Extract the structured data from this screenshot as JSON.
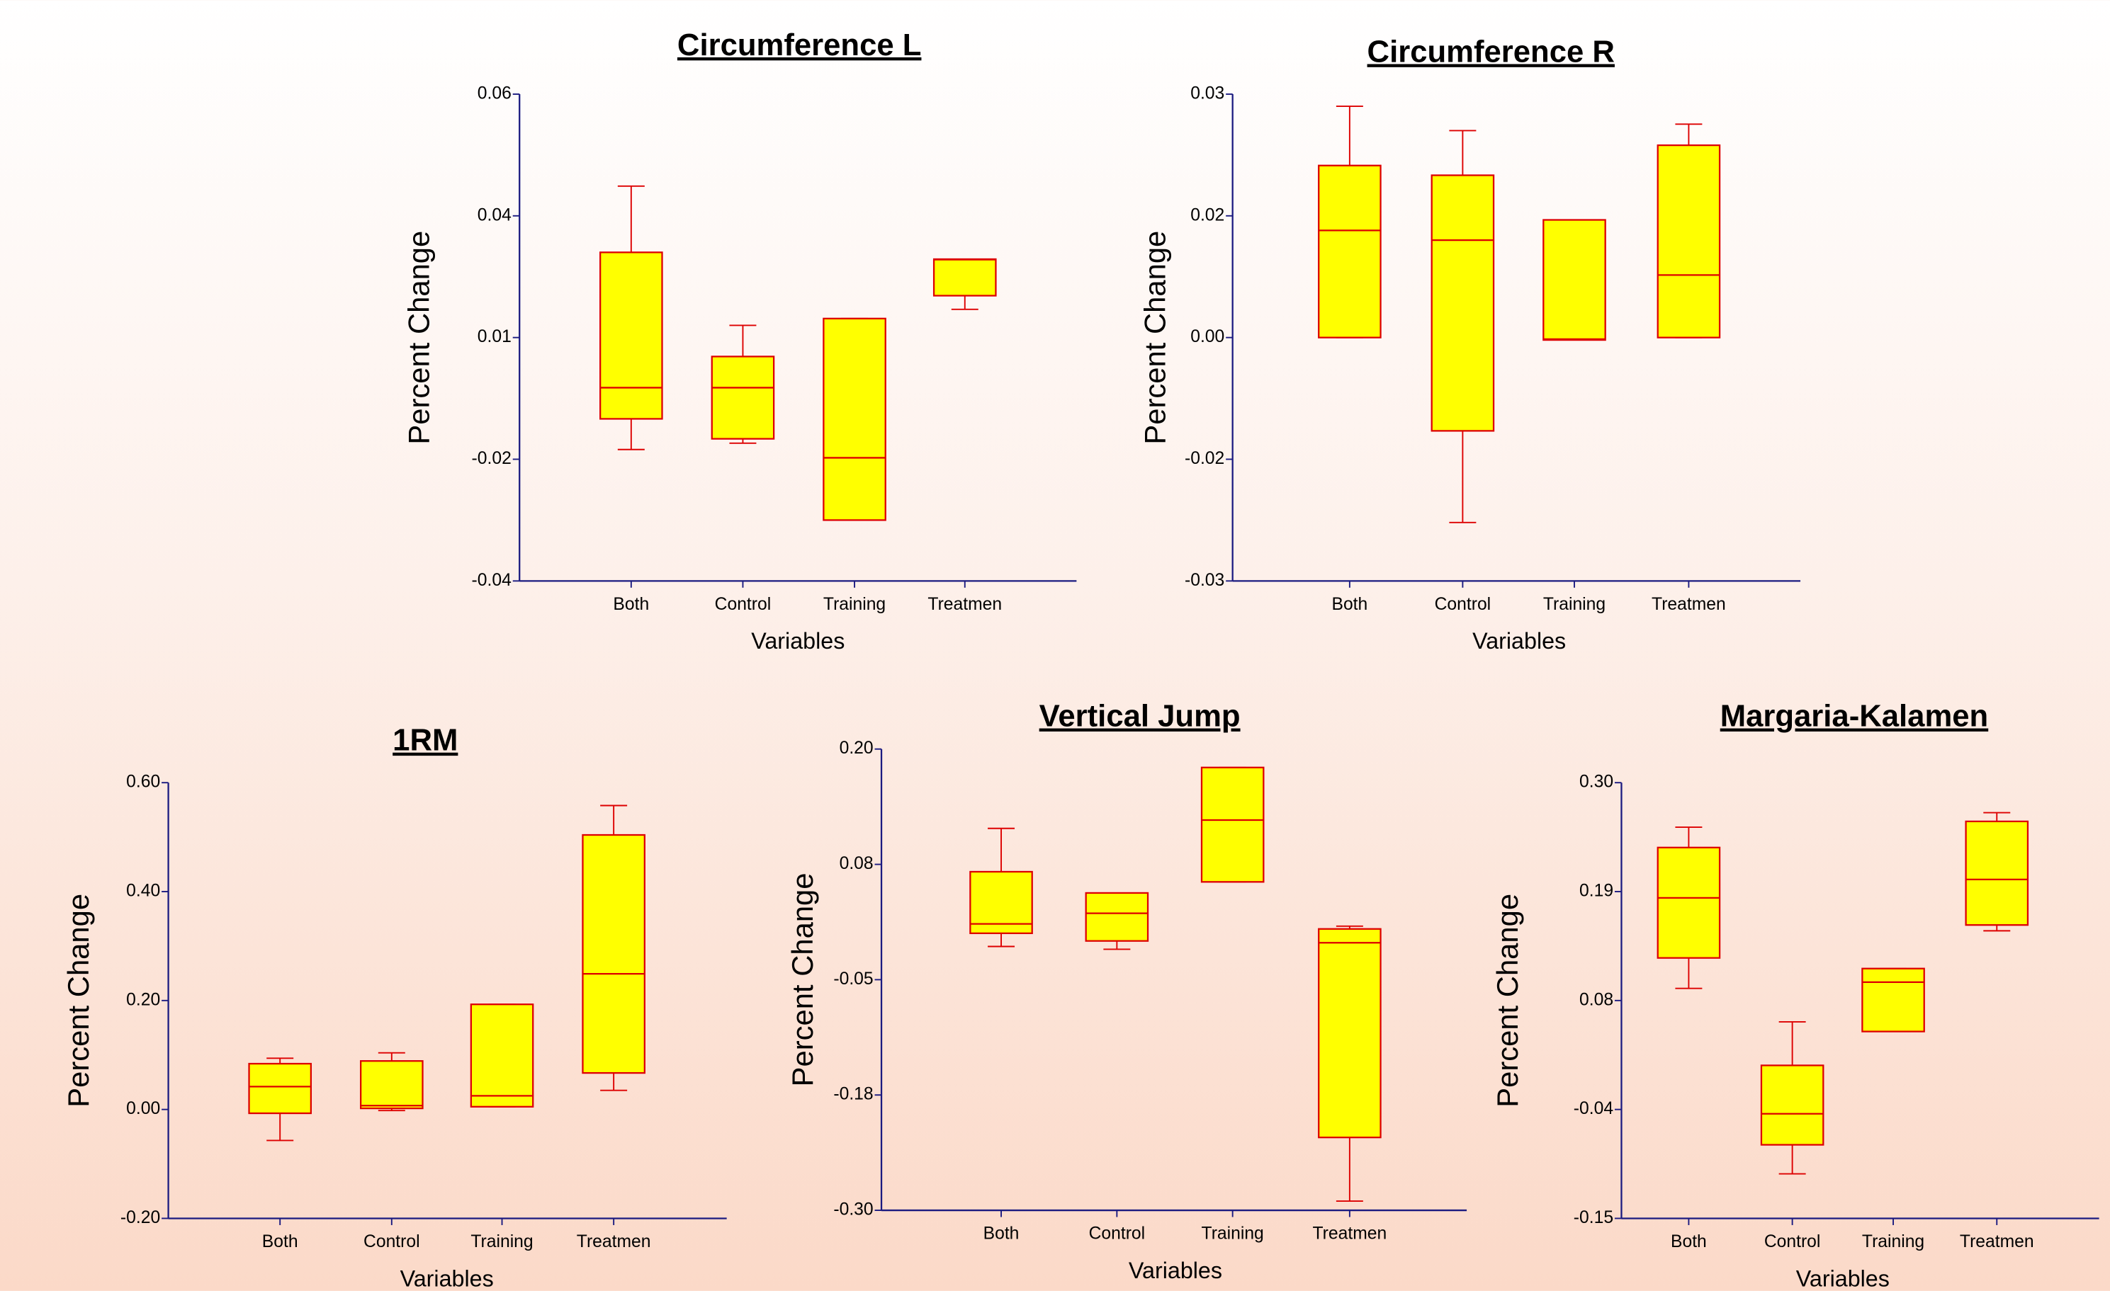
{
  "chart_data": [
    {
      "type": "box",
      "title": "Circumference L",
      "y_label": "Percent Change",
      "x_label": "Variables",
      "categories": [
        "Both",
        "Control",
        "Training",
        "Treatmen"
      ],
      "color": "#ffff00",
      "line_color": "#dd0000",
      "ylim": [
        -0.04,
        0.06
      ],
      "yticks": [
        0.06,
        {
          "value": 0.035,
          "label": "0.04"
        },
        0.01,
        {
          "value": -0.015,
          "label": "-0.02"
        },
        -0.04
      ],
      "boxes": [
        {
          "min": -0.013,
          "q1": -0.0067,
          "median": -0.0003,
          "q3": 0.0275,
          "max": 0.0411
        },
        {
          "min": -0.0117,
          "q1": -0.0108,
          "median": -0.0003,
          "q3": 0.0061,
          "max": 0.0125
        },
        {
          "min": -0.0275,
          "q1": -0.0275,
          "median": -0.0147,
          "q3": 0.0139,
          "max": 0.0139
        },
        {
          "min": 0.0158,
          "q1": 0.0186,
          "median": 0.026,
          "q3": 0.0261,
          "max": 0.0261
        }
      ]
    },
    {
      "type": "box",
      "title": "Circumference R",
      "y_label": "Percent Change",
      "x_label": "Variables",
      "categories": [
        "Both",
        "Control",
        "Training",
        "Treatmen"
      ],
      "color": "#ffff00",
      "line_color": "#dd0000",
      "ylim": [
        -0.03,
        0.03
      ],
      "yticks": [
        0.03,
        {
          "value": 0.015,
          "label": "0.02"
        },
        {
          "value": 0,
          "label": "0.00"
        },
        {
          "value": -0.015,
          "label": "-0.02"
        },
        -0.03
      ],
      "boxes": [
        {
          "min": 0,
          "q1": 0,
          "median": 0.0132,
          "q3": 0.0212,
          "max": 0.0285
        },
        {
          "min": -0.0228,
          "q1": -0.0115,
          "median": 0.012,
          "q3": 0.02,
          "max": 0.0255
        },
        {
          "min": -0.0003,
          "q1": -0.0003,
          "median": -0.0002,
          "q3": 0.0145,
          "max": 0.0145
        },
        {
          "min": 0,
          "q1": 0,
          "median": 0.0077,
          "q3": 0.0237,
          "max": 0.0263
        }
      ]
    },
    {
      "type": "box",
      "title": "1RM",
      "y_label": "Percent Change",
      "x_label": "Variables",
      "categories": [
        "Both",
        "Control",
        "Training",
        "Treatmen"
      ],
      "color": "#ffff00",
      "line_color": "#dd0000",
      "ylim": [
        -0.2,
        0.6
      ],
      "yticks": [
        {
          "value": 0.6,
          "label": "0.60"
        },
        {
          "value": 0.4,
          "label": "0.40"
        },
        {
          "value": 0.2,
          "label": "0.20"
        },
        {
          "value": 0,
          "label": "0.00"
        },
        {
          "value": -0.2,
          "label": "-0.20"
        }
      ],
      "boxes": [
        {
          "min": -0.057,
          "q1": -0.007,
          "median": 0.042,
          "q3": 0.084,
          "max": 0.094
        },
        {
          "min": -0.002,
          "q1": 0.002,
          "median": 0.007,
          "q3": 0.089,
          "max": 0.104
        },
        {
          "min": 0.005,
          "q1": 0.005,
          "median": 0.025,
          "q3": 0.193,
          "max": 0.193
        },
        {
          "min": 0.035,
          "q1": 0.067,
          "median": 0.249,
          "q3": 0.504,
          "max": 0.558
        }
      ]
    },
    {
      "type": "box",
      "title": "Vertical Jump",
      "y_label": "Percent Change",
      "x_label": "Variables",
      "categories": [
        "Both",
        "Control",
        "Training",
        "Treatmen"
      ],
      "color": "#ffff00",
      "line_color": "#dd0000",
      "ylim": [
        -0.3,
        0.2
      ],
      "yticks": [
        {
          "value": 0.2,
          "label": "0.20"
        },
        {
          "value": 0.075,
          "label": "0.08"
        },
        -0.05,
        {
          "value": -0.175,
          "label": "-0.18"
        },
        {
          "value": -0.3,
          "label": "-0.30"
        }
      ],
      "boxes": [
        {
          "min": -0.014,
          "q1": 0.0003,
          "median": 0.0105,
          "q3": 0.067,
          "max": 0.114
        },
        {
          "min": -0.017,
          "q1": -0.008,
          "median": 0.022,
          "q3": 0.044,
          "max": 0.044
        },
        {
          "min": 0.056,
          "q1": 0.056,
          "median": 0.123,
          "q3": 0.18,
          "max": 0.18
        },
        {
          "min": -0.29,
          "q1": -0.221,
          "median": -0.01,
          "q3": 0.005,
          "max": 0.008
        }
      ]
    },
    {
      "type": "box",
      "title": "Margaria-Kalamen",
      "y_label": "Percent Change",
      "x_label": "Variables",
      "categories": [
        "Both",
        "Control",
        "Training",
        "Treatmen"
      ],
      "color": "#ffff00",
      "line_color": "#dd0000",
      "ylim": [
        -0.15,
        0.3
      ],
      "yticks": [
        {
          "value": 0.3,
          "label": "0.30"
        },
        {
          "value": 0.1875,
          "label": "0.19"
        },
        {
          "value": 0.075,
          "label": "0.08"
        },
        {
          "value": -0.0375,
          "label": "-0.04"
        },
        -0.15
      ],
      "boxes": [
        {
          "min": 0.0875,
          "q1": 0.119,
          "median": 0.181,
          "q3": 0.233,
          "max": 0.254
        },
        {
          "min": -0.104,
          "q1": -0.074,
          "median": -0.042,
          "q3": 0.008,
          "max": 0.053
        },
        {
          "min": 0.043,
          "q1": 0.043,
          "median": 0.094,
          "q3": 0.108,
          "max": 0.108
        },
        {
          "min": 0.147,
          "q1": 0.153,
          "median": 0.2,
          "q3": 0.26,
          "max": 0.269
        }
      ]
    }
  ]
}
